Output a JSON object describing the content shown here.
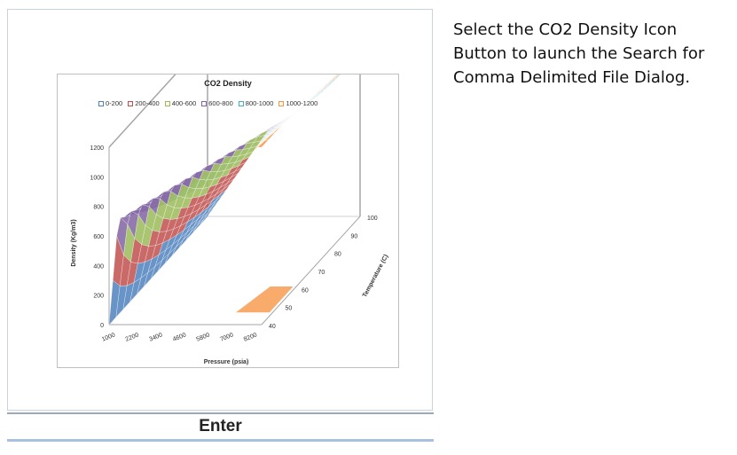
{
  "instructions": {
    "line1": "Select the CO2 Density Icon",
    "line2": "Button to launch the Search for",
    "line3": "Comma Delimited File Dialog."
  },
  "buttons": {
    "enter_label": "Enter"
  },
  "chart_data": {
    "type": "surface",
    "title": "CO2 Density",
    "xlabel": "Pressure (psia)",
    "ylabel": "Density (Kg/m3)",
    "zlabel": "Temperature (C)",
    "legend": [
      {
        "name": "0-200",
        "color": "#4f81bd"
      },
      {
        "name": "200-400",
        "color": "#c0504d"
      },
      {
        "name": "400-600",
        "color": "#9bbb59"
      },
      {
        "name": "600-800",
        "color": "#8064a2"
      },
      {
        "name": "800-1000",
        "color": "#4bacc6"
      },
      {
        "name": "1000-1200",
        "color": "#f79646"
      }
    ],
    "x_ticks": [
      "1000",
      "2200",
      "3400",
      "4600",
      "5800",
      "7000",
      "8200"
    ],
    "y_ticks": [
      "0",
      "200",
      "400",
      "600",
      "800",
      "1000",
      "1200"
    ],
    "z_ticks": [
      "40",
      "50",
      "60",
      "70",
      "80",
      "90",
      "100"
    ],
    "ylim": [
      0,
      1200
    ],
    "xlim": [
      1000,
      8200
    ],
    "zlim": [
      40,
      100
    ],
    "legend_position": "top",
    "grid": false
  }
}
